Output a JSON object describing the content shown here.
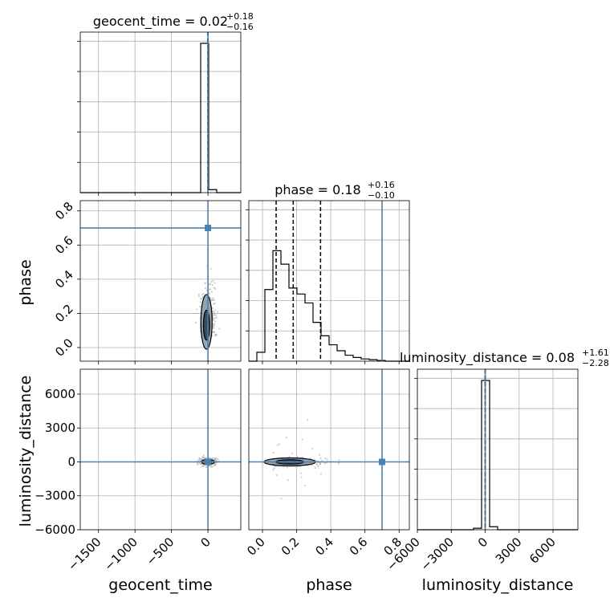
{
  "chart_data": {
    "type": "corner",
    "parameters": [
      "geocent_time",
      "phase",
      "luminosity_distance"
    ],
    "titles": [
      {
        "text": "geocent_time = 0.02",
        "sup": "+0.18",
        "sub": "−0.16"
      },
      {
        "text": "phase = 0.18",
        "sup": "+0.16",
        "sub": "−0.10"
      },
      {
        "text": "luminosity_distance = 0.08",
        "sup": "+1.61",
        "sub": "−2.28"
      }
    ],
    "axis_labels": {
      "x": [
        "geocent_time",
        "phase",
        "luminosity_distance"
      ],
      "y": [
        "phase",
        "luminosity_distance"
      ]
    },
    "ranges": {
      "geocent_time": [
        -1750,
        450
      ],
      "phase": [
        -0.08,
        0.86
      ],
      "luminosity_distance": [
        -6000,
        8200
      ]
    },
    "ticks": {
      "geocent_time": [
        -1500,
        -1000,
        -500,
        0
      ],
      "phase_x": [
        0.0,
        0.2,
        0.4,
        0.6,
        0.8
      ],
      "phase_y": [
        0.0,
        0.2,
        0.4,
        0.6,
        0.8
      ],
      "luminosity_distance_x": [
        -6000,
        -3000,
        0,
        3000,
        6000
      ],
      "luminosity_distance_y": [
        -6000,
        -3000,
        0,
        3000,
        6000
      ]
    },
    "tick_labels": {
      "geocent_time": [
        "−1500",
        "−1000",
        "−500",
        "0"
      ],
      "phase_x": [
        "0.0",
        "0.2",
        "0.4",
        "0.6",
        "0.8"
      ],
      "phase_y": [
        "0.0",
        "0.2",
        "0.4",
        "0.6",
        "0.8"
      ],
      "luminosity_distance_x": [
        "−6000",
        "−3000",
        "0",
        "3000",
        "6000"
      ],
      "luminosity_distance_y": [
        "−6000",
        "−3000",
        "0",
        "3000",
        "6000"
      ]
    },
    "truths": {
      "geocent_time": 0.0,
      "phase": 0.7,
      "luminosity_distance": 0.0
    },
    "quantiles": {
      "geocent_time": [
        -0.14,
        0.02,
        0.2
      ],
      "phase": [
        0.08,
        0.18,
        0.34
      ],
      "luminosity_distance": [
        -2.2,
        0.08,
        1.69
      ]
    },
    "hist_geocent_time": {
      "edges": [
        -1750,
        -1640,
        -1530,
        -1420,
        -1310,
        -1200,
        -1090,
        -980,
        -870,
        -760,
        -650,
        -540,
        -430,
        -320,
        -210,
        -100,
        10,
        120,
        230,
        340,
        450
      ],
      "counts": [
        0,
        0,
        0,
        0,
        0,
        0,
        0,
        0,
        0,
        0,
        0,
        0,
        0,
        0,
        0,
        1.0,
        0.02,
        0,
        0,
        0
      ]
    },
    "hist_phase": {
      "edges": [
        -0.08,
        -0.033,
        0.014,
        0.061,
        0.108,
        0.155,
        0.202,
        0.249,
        0.296,
        0.343,
        0.39,
        0.437,
        0.484,
        0.531,
        0.578,
        0.625,
        0.672,
        0.719,
        0.766,
        0.813,
        0.86
      ],
      "counts": [
        0,
        0.06,
        0.48,
        0.74,
        0.65,
        0.49,
        0.45,
        0.39,
        0.26,
        0.17,
        0.11,
        0.07,
        0.04,
        0.025,
        0.015,
        0.01,
        0.005,
        0,
        0,
        0
      ]
    },
    "hist_luminosity_distance": {
      "edges": [
        -6000,
        -5290,
        -4580,
        -3870,
        -3160,
        -2450,
        -1740,
        -1030,
        -320,
        390,
        1100,
        1810,
        2520,
        3230,
        3940,
        4650,
        5360,
        6070,
        6780,
        7490,
        8200
      ],
      "counts": [
        0,
        0,
        0,
        0,
        0,
        0,
        0,
        0.01,
        1.0,
        0.02,
        0,
        0,
        0,
        0,
        0,
        0,
        0,
        0,
        0,
        0
      ]
    },
    "grid": true
  }
}
